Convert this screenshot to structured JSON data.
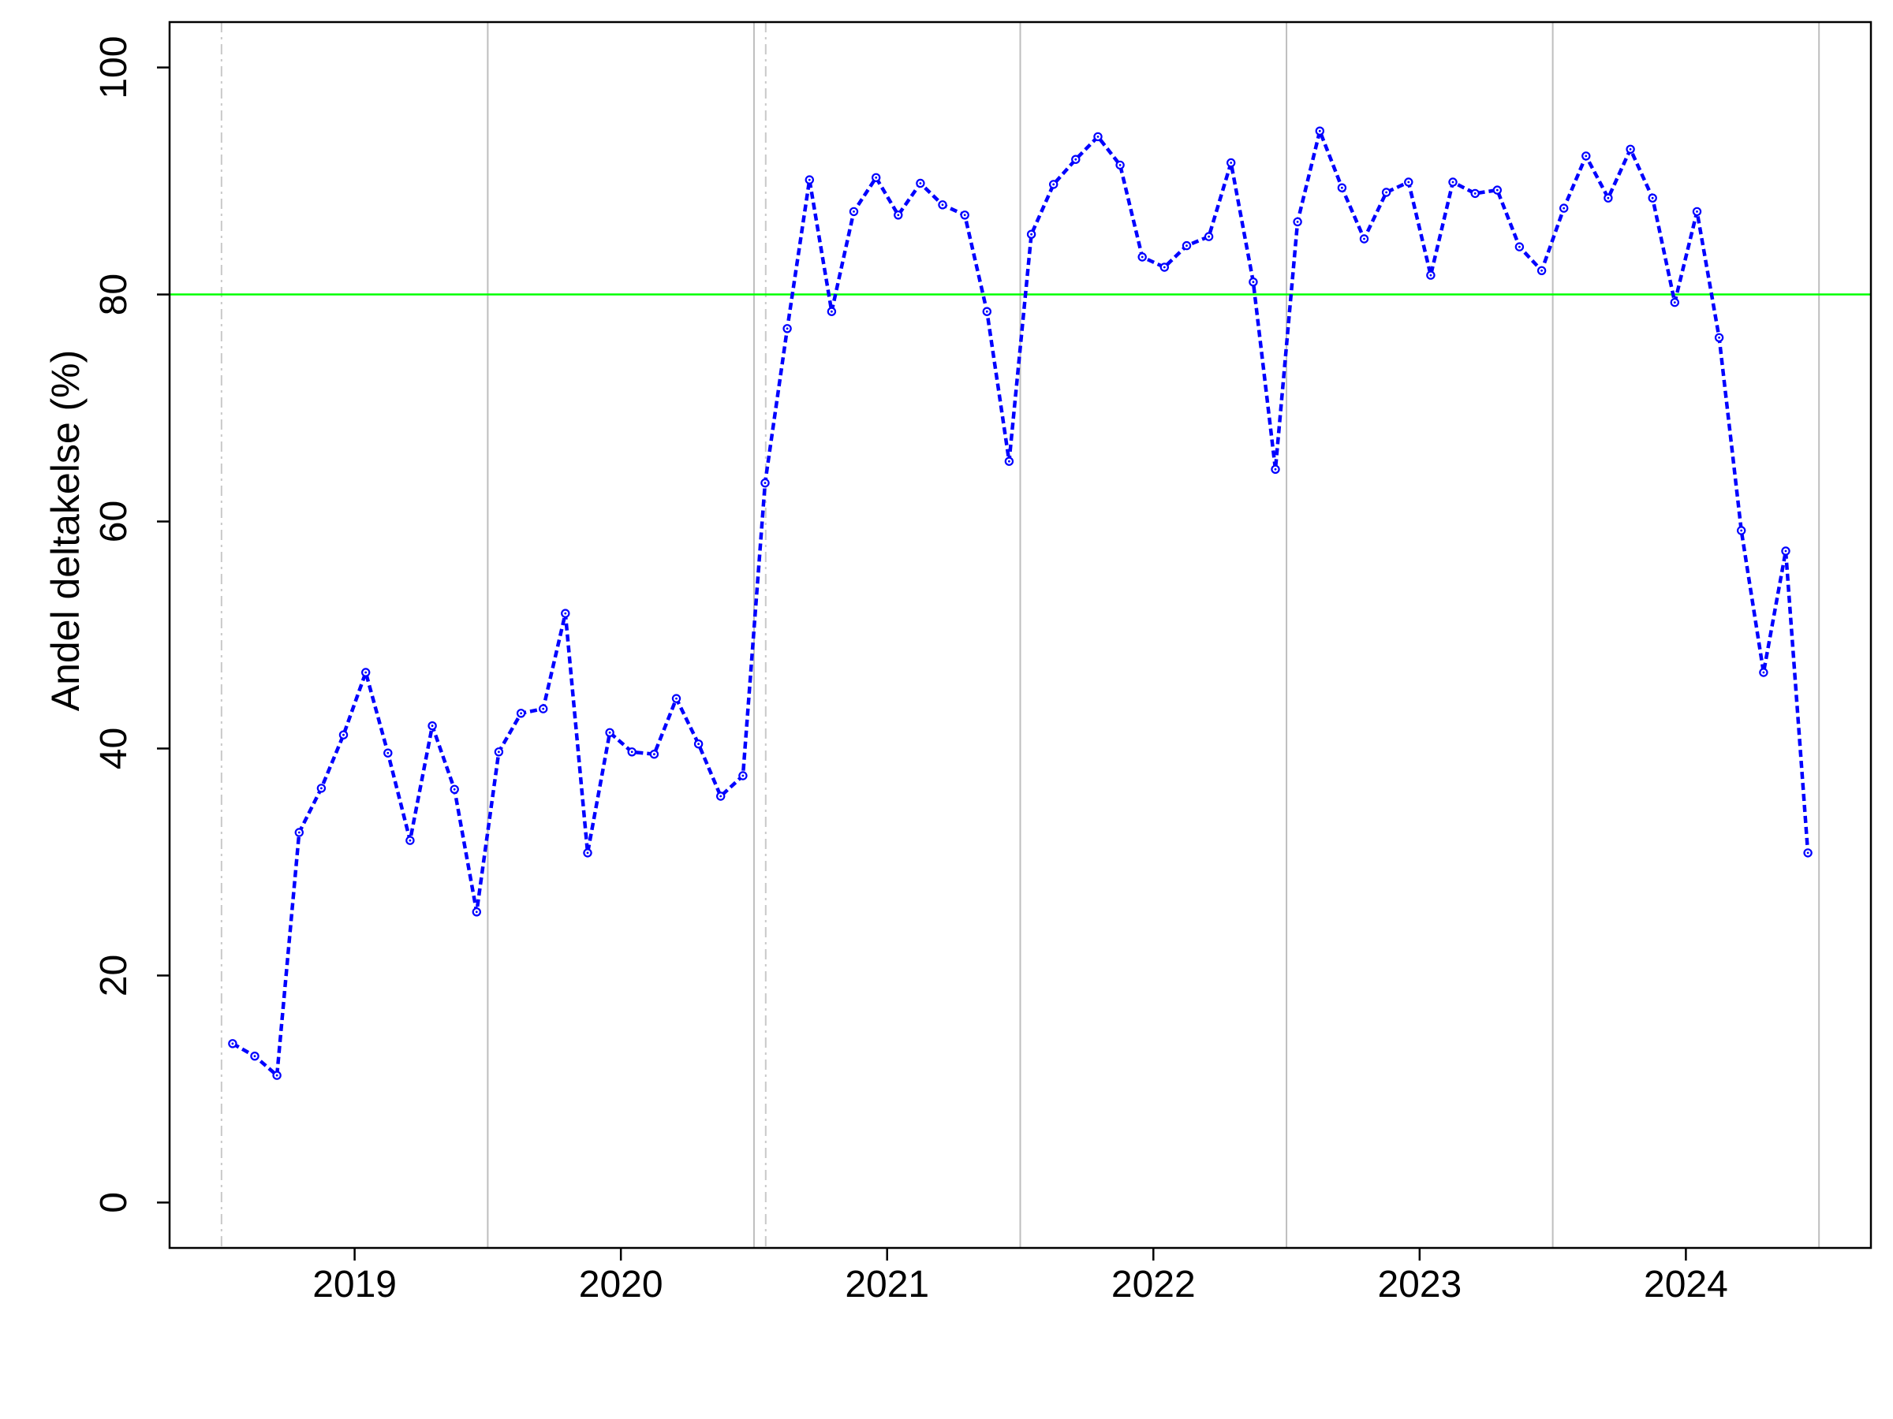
{
  "chart_data": {
    "type": "line",
    "title": "",
    "xlabel": "",
    "ylabel": "Andel deltakelse (%)",
    "legend": "none",
    "grid": "vertical-only",
    "x_tick_labels": [
      "2019",
      "2020",
      "2021",
      "2022",
      "2023",
      "2024"
    ],
    "x_tick_years": [
      2019,
      2020,
      2021,
      2022,
      2023,
      2024
    ],
    "y_tick_labels": [
      "0",
      "20",
      "40",
      "60",
      "80",
      "100"
    ],
    "y_ticks": [
      0,
      20,
      40,
      60,
      80,
      100
    ],
    "ylim": [
      -4,
      104
    ],
    "xlim_years": [
      2018.305,
      2024.695
    ],
    "reference_line": {
      "y": 80,
      "color": "#00FF00"
    },
    "solid_gridlines_years": [
      2019.5,
      2020.5,
      2021.5,
      2022.5,
      2023.5,
      2024.5
    ],
    "dashdot_lines_years": [
      2018.5,
      2020.544
    ],
    "colors": {
      "series": "#0000FF",
      "gridline_solid": "#BEBEBE",
      "gridline_dashdot": "#C9C9C9",
      "axis": "#000000",
      "background": "#FFFFFF"
    },
    "series": [
      {
        "name": "Andel deltakelse",
        "start_month": "2018-07",
        "frequency": "monthly",
        "values": [
          14.0,
          12.9,
          11.2,
          32.6,
          36.5,
          41.2,
          46.7,
          39.6,
          31.9,
          42.0,
          36.4,
          25.6,
          39.7,
          43.1,
          43.5,
          51.9,
          30.8,
          41.4,
          39.7,
          39.5,
          44.4,
          40.4,
          35.8,
          37.6,
          63.4,
          77.0,
          90.1,
          78.5,
          87.3,
          90.3,
          87.0,
          89.8,
          87.9,
          87.0,
          78.5,
          65.3,
          85.3,
          89.7,
          91.9,
          93.9,
          91.4,
          83.3,
          82.4,
          84.3,
          85.1,
          91.6,
          81.1,
          64.6,
          86.4,
          94.4,
          89.4,
          84.9,
          89.0,
          89.9,
          81.7,
          89.9,
          88.9,
          89.2,
          84.2,
          82.1,
          87.6,
          92.2,
          88.5,
          92.8,
          88.5,
          79.3,
          87.3,
          76.2,
          59.2,
          46.7,
          57.4,
          30.8
        ]
      }
    ]
  }
}
